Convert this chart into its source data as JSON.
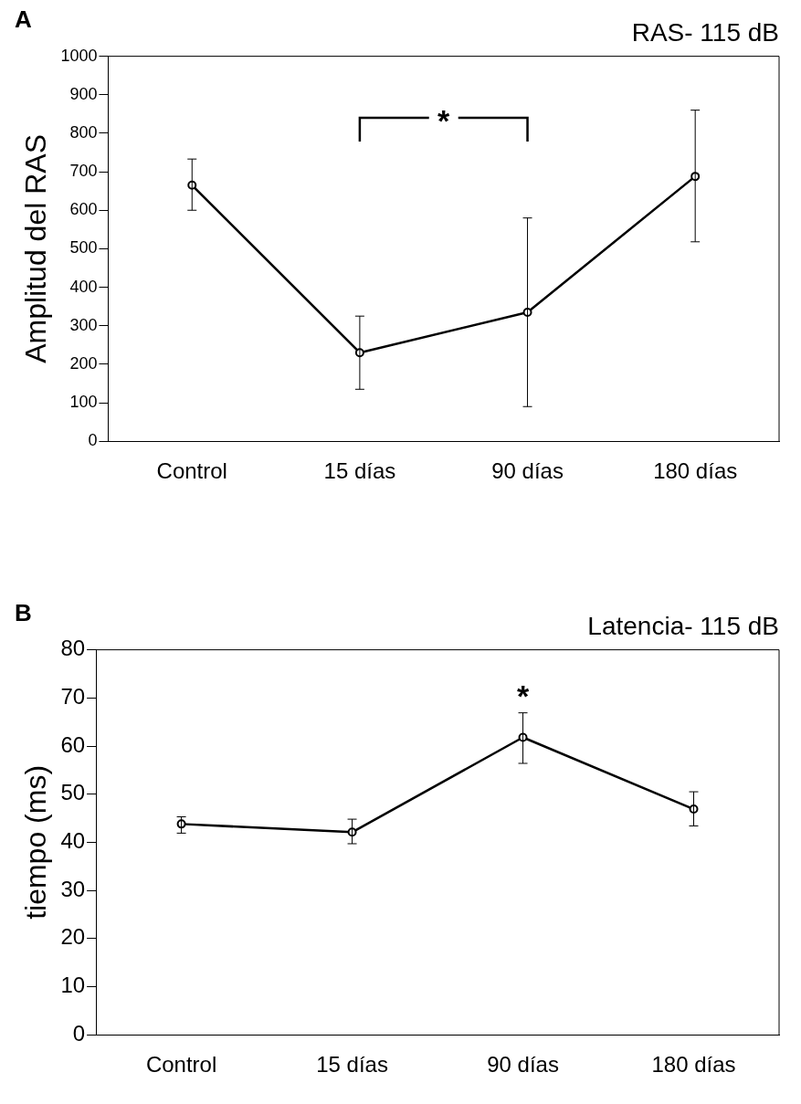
{
  "chart_data": [
    {
      "type": "line",
      "title": "RAS- 115 dB",
      "ylabel": "Amplitud del RAS",
      "categories": [
        "Control",
        "15 días",
        "90 días",
        "180 días"
      ],
      "series": [
        {
          "color": "#000000",
          "values": [
            665,
            230,
            335,
            688
          ],
          "errors": [
            [
              600,
              733
            ],
            [
              135,
              325
            ],
            [
              90,
              580
            ],
            [
              518,
              860
            ]
          ]
        }
      ],
      "ylim": [
        0,
        1000
      ],
      "yticks": [
        0,
        100,
        200,
        300,
        400,
        500,
        600,
        700,
        800,
        900,
        1000
      ],
      "grid": false,
      "legend": false,
      "marker": "circle",
      "line_style": "solid",
      "annotations": [
        "A",
        "*"
      ]
    },
    {
      "type": "line",
      "title": "Latencia- 115 dB",
      "ylabel": "tiempo (ms)",
      "categories": [
        "Control",
        "15 días",
        "90 días",
        "180 días"
      ],
      "series": [
        {
          "color": "#000000",
          "values": [
            43.8,
            42.1,
            61.8,
            46.9
          ],
          "errors": [
            [
              41.9,
              45.3
            ],
            [
              39.7,
              44.8
            ],
            [
              56.4,
              66.9
            ],
            [
              43.4,
              50.5
            ]
          ]
        }
      ],
      "ylim": [
        0,
        80
      ],
      "yticks": [
        0,
        10,
        20,
        30,
        40,
        50,
        60,
        70,
        80
      ],
      "grid": false,
      "legend": false,
      "marker": "circle",
      "line_style": "solid",
      "annotations": [
        "B",
        "*"
      ]
    }
  ]
}
